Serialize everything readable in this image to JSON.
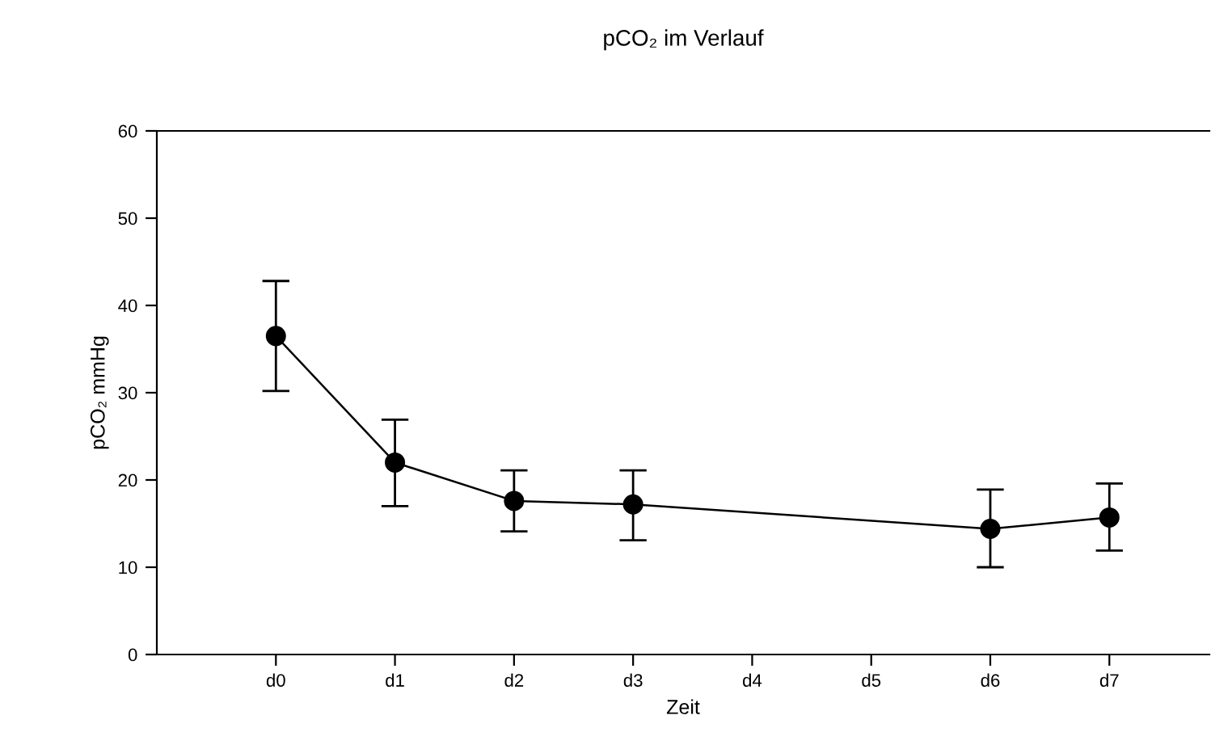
{
  "chart_data": {
    "type": "line",
    "title": "pCO₂ im Verlauf",
    "xlabel": "Zeit",
    "ylabel": "pCO₂ mmHg",
    "categories": [
      "d0",
      "d1",
      "d2",
      "d3",
      "d4",
      "d5",
      "d6",
      "d7"
    ],
    "series": [
      {
        "color": "#000000",
        "values": [
          36.5,
          22.0,
          17.6,
          17.2,
          null,
          null,
          14.4,
          15.7
        ],
        "errors": [
          [
            30.2,
            42.8
          ],
          [
            17.0,
            26.9
          ],
          [
            14.1,
            21.1
          ],
          [
            13.1,
            21.1
          ],
          null,
          null,
          [
            10.0,
            18.9
          ],
          [
            11.9,
            19.6
          ]
        ]
      }
    ],
    "ylim": [
      0,
      60
    ],
    "yticks": [
      0,
      10,
      20,
      30,
      40,
      50,
      60
    ],
    "grid": false,
    "legend": false,
    "marker": "circle",
    "line_style": "solid"
  }
}
